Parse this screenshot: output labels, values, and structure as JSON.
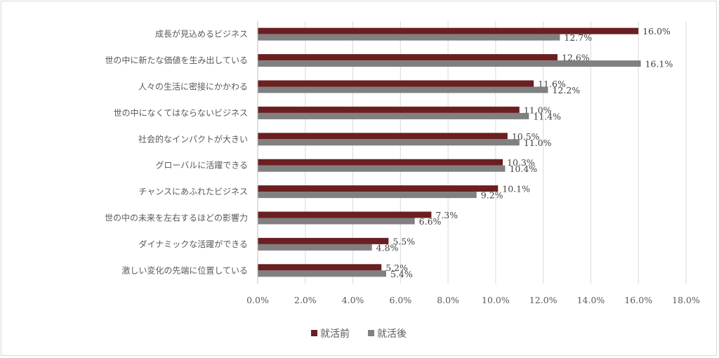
{
  "chart_data": {
    "type": "bar",
    "orientation": "horizontal",
    "categories": [
      "成長が見込めるビジネス",
      "世の中に新たな価値を生み出している",
      "人々の生活に密接にかかわる",
      "世の中になくてはならないビジネス",
      "社会的なインパクトが大きい",
      "グローバルに活躍できる",
      "チャンスにあふれたビジネス",
      "世の中の未来を左右するほどの影響力",
      "ダイナミックな活躍ができる",
      "激しい変化の先端に位置している"
    ],
    "series": [
      {
        "name": "就活前",
        "color": "#6b1f20",
        "values": [
          16.0,
          12.6,
          11.6,
          11.0,
          10.5,
          10.3,
          10.1,
          7.3,
          5.5,
          5.2
        ],
        "labels": [
          "16.0%",
          "12.6%",
          "11.6%",
          "11.0%",
          "10.5%",
          "10.3%",
          "10.1%",
          "7.3%",
          "5.5%",
          "5.2%"
        ]
      },
      {
        "name": "就活後",
        "color": "#808080",
        "values": [
          12.7,
          16.1,
          12.2,
          11.4,
          11.0,
          10.4,
          9.2,
          6.6,
          4.8,
          5.4
        ],
        "labels": [
          "12.7%",
          "16.1%",
          "12.2%",
          "11.4%",
          "11.0%",
          "10.4%",
          "9.2%",
          "6.6%",
          "4.8%",
          "5.4%"
        ]
      }
    ],
    "xlim": [
      0,
      18
    ],
    "x_ticks": [
      0,
      2,
      4,
      6,
      8,
      10,
      12,
      14,
      16,
      18
    ],
    "x_tick_labels": [
      "0.0%",
      "2.0%",
      "4.0%",
      "6.0%",
      "8.0%",
      "10.0%",
      "12.0%",
      "14.0%",
      "16.0%",
      "18.0%"
    ],
    "grid": true,
    "legend_position": "bottom"
  }
}
